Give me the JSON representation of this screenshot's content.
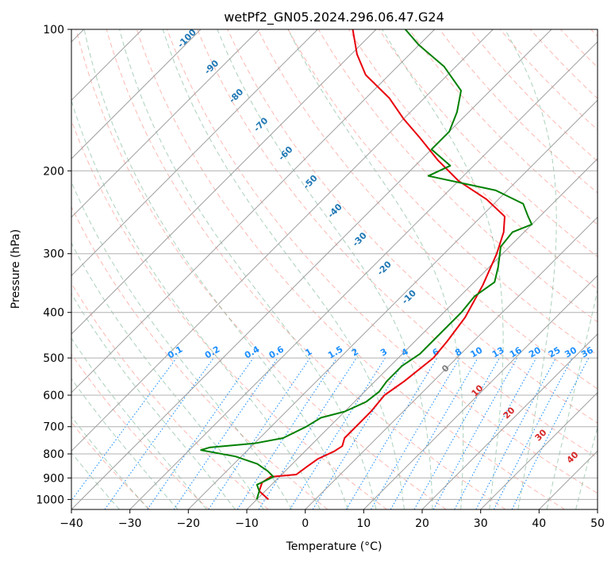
{
  "chart_data": {
    "type": "line",
    "title": "wetPf2_GN05.2024.296.06.47.G24",
    "xlabel": "Temperature (°C)",
    "ylabel": "Pressure (hPa)",
    "xlim": [
      -40,
      50
    ],
    "ylim": [
      1050,
      100
    ],
    "y_scale": "log",
    "grid": true,
    "x_ticks": [
      -40,
      -30,
      -20,
      -10,
      0,
      10,
      20,
      30,
      40,
      50
    ],
    "y_ticks": [
      1000,
      900,
      800,
      700,
      600,
      500,
      400,
      300,
      200,
      100
    ],
    "colors": {
      "temperature": "#e8000b",
      "dewpoint": "#008000",
      "dry_adiabat": "#fa8072",
      "moist_adiabat": "#2e8b57",
      "mixing_ratio": "#1e90ff",
      "isotherm_skew": "#808080",
      "theta_label": "#1f77b4",
      "theta_label_warm": "#d62728",
      "theta_label_zero": "#7f7f7f",
      "mixing_label": "#1e90ff"
    },
    "series": [
      {
        "key": "temperature",
        "points": [
          {
            "t": -8,
            "p": 1000
          },
          {
            "t": -11,
            "p": 960
          },
          {
            "t": -12,
            "p": 920
          },
          {
            "t": -11.5,
            "p": 895
          },
          {
            "t": -7.5,
            "p": 885
          },
          {
            "t": -7,
            "p": 850
          },
          {
            "t": -6.5,
            "p": 820
          },
          {
            "t": -5,
            "p": 790
          },
          {
            "t": -4.5,
            "p": 770
          },
          {
            "t": -5.5,
            "p": 740
          },
          {
            "t": -5.5,
            "p": 700
          },
          {
            "t": -5.5,
            "p": 650
          },
          {
            "t": -6,
            "p": 600
          },
          {
            "t": -5,
            "p": 560
          },
          {
            "t": -4,
            "p": 500
          },
          {
            "t": -4.5,
            "p": 460
          },
          {
            "t": -5.5,
            "p": 410
          },
          {
            "t": -8,
            "p": 350
          },
          {
            "t": -11,
            "p": 300
          },
          {
            "t": -13.5,
            "p": 270
          },
          {
            "t": -16,
            "p": 250
          },
          {
            "t": -22,
            "p": 230
          },
          {
            "t": -30,
            "p": 210
          },
          {
            "t": -37,
            "p": 190
          },
          {
            "t": -44,
            "p": 170
          },
          {
            "t": -50,
            "p": 155
          },
          {
            "t": -56,
            "p": 140
          },
          {
            "t": -64,
            "p": 125
          },
          {
            "t": -69,
            "p": 113
          },
          {
            "t": -74,
            "p": 100
          }
        ]
      },
      {
        "key": "dewpoint",
        "points": [
          {
            "t": -10,
            "p": 1000
          },
          {
            "t": -10.5,
            "p": 980
          },
          {
            "t": -11,
            "p": 960
          },
          {
            "t": -12.5,
            "p": 930
          },
          {
            "t": -11,
            "p": 895
          },
          {
            "t": -13,
            "p": 870
          },
          {
            "t": -16,
            "p": 840
          },
          {
            "t": -21,
            "p": 810
          },
          {
            "t": -28,
            "p": 785
          },
          {
            "t": -27,
            "p": 775
          },
          {
            "t": -20,
            "p": 760
          },
          {
            "t": -16,
            "p": 740
          },
          {
            "t": -14,
            "p": 700
          },
          {
            "t": -13,
            "p": 670
          },
          {
            "t": -10,
            "p": 650
          },
          {
            "t": -8,
            "p": 620
          },
          {
            "t": -7.5,
            "p": 590
          },
          {
            "t": -8,
            "p": 560
          },
          {
            "t": -8,
            "p": 520
          },
          {
            "t": -7,
            "p": 490
          },
          {
            "t": -7,
            "p": 450
          },
          {
            "t": -7,
            "p": 400
          },
          {
            "t": -7.5,
            "p": 370
          },
          {
            "t": -6.5,
            "p": 345
          },
          {
            "t": -8.5,
            "p": 320
          },
          {
            "t": -11.5,
            "p": 290
          },
          {
            "t": -12,
            "p": 270
          },
          {
            "t": -10,
            "p": 260
          },
          {
            "t": -12,
            "p": 250
          },
          {
            "t": -15,
            "p": 235
          },
          {
            "t": -22,
            "p": 220
          },
          {
            "t": -36,
            "p": 205
          },
          {
            "t": -34,
            "p": 195
          },
          {
            "t": -40,
            "p": 180
          },
          {
            "t": -40,
            "p": 165
          },
          {
            "t": -42,
            "p": 150
          },
          {
            "t": -45,
            "p": 135
          },
          {
            "t": -52,
            "p": 120
          },
          {
            "t": -60,
            "p": 108
          },
          {
            "t": -65,
            "p": 100
          }
        ]
      }
    ],
    "theta_labels": [
      "-100",
      "-90",
      "-80",
      "-70",
      "-60",
      "-50",
      "-40",
      "-30",
      "-20",
      "-10",
      "0",
      "10",
      "20",
      "30",
      "40"
    ],
    "mixing_ratio_labels": [
      "0.1",
      "0.2",
      "0.4",
      "0.6",
      "1",
      "1.5",
      "2",
      "3",
      "4",
      "6",
      "8",
      "10",
      "13",
      "16",
      "20",
      "25",
      "30",
      "36"
    ]
  }
}
